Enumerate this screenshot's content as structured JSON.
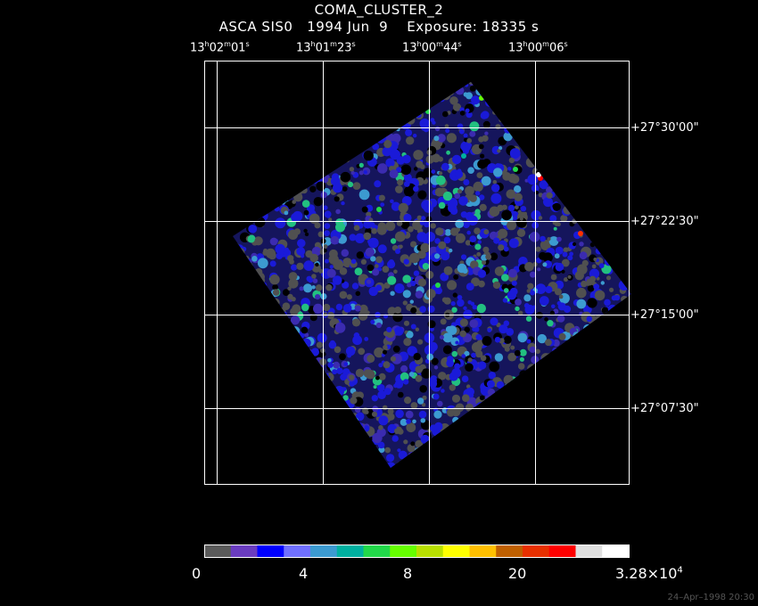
{
  "header": {
    "line1": "COMA_CLUSTER_2",
    "line2": "ASCA SIS0   1994 Jun  9    Exposure: 18335 s"
  },
  "ra_labels": [
    {
      "h": "13",
      "m": "02",
      "s": "01"
    },
    {
      "h": "13",
      "m": "01",
      "s": "23"
    },
    {
      "h": "13",
      "m": "00",
      "s": "44"
    },
    {
      "h": "13",
      "m": "00",
      "s": "06"
    }
  ],
  "dec_labels": [
    "+27°30'00\"",
    "+27°22'30\"",
    "+27°15'00\"",
    "+27°07'30\""
  ],
  "colorbar": {
    "colors": [
      "#5a5a5a",
      "#6a3cc0",
      "#0000ff",
      "#7070ff",
      "#3c9ad0",
      "#00b0a0",
      "#22d84a",
      "#66ff00",
      "#b8e000",
      "#ffff00",
      "#ffc000",
      "#c06000",
      "#e83000",
      "#ff0000",
      "#e0e0e0",
      "#ffffff"
    ],
    "ticks": [
      "0",
      "4",
      "8",
      "20"
    ],
    "max_tick": {
      "base": "3.28×10",
      "exp": "4"
    }
  },
  "footer": {
    "timestamp": "24–Apr–1998 20:30"
  }
}
